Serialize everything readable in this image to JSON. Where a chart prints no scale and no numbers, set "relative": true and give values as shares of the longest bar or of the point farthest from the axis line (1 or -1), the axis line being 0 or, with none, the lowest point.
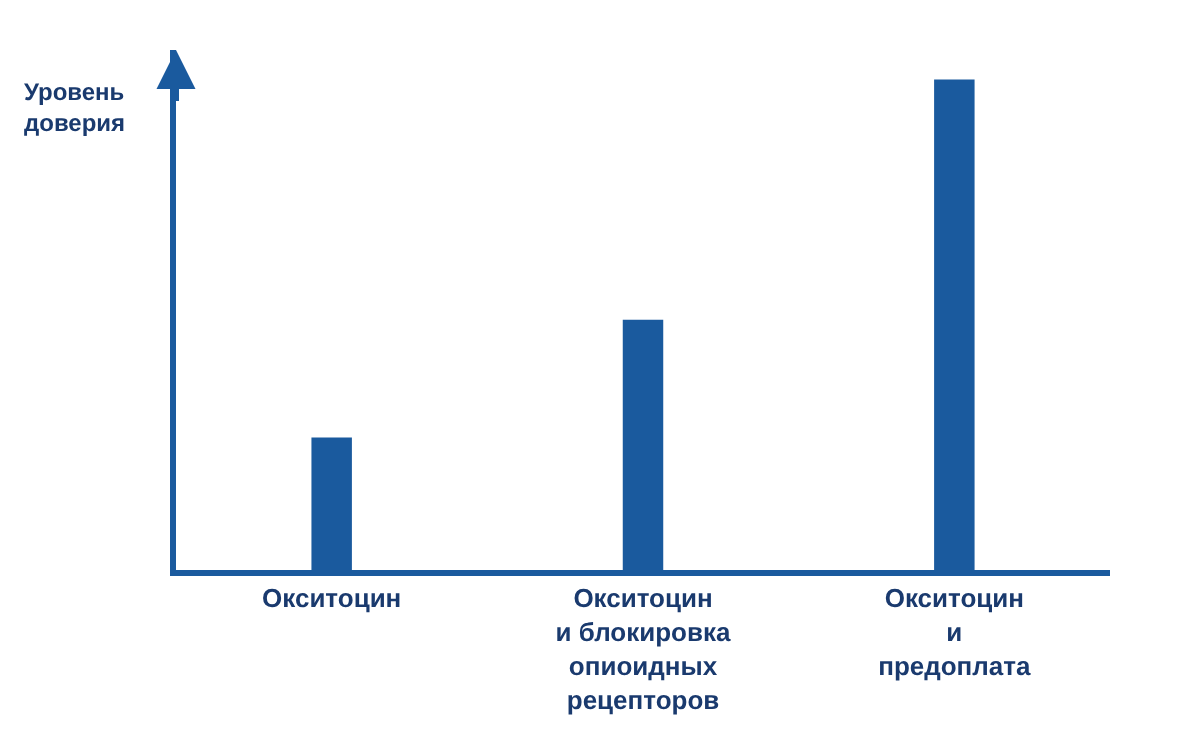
{
  "chart_data": {
    "type": "bar",
    "relative": true,
    "ylabel": "Уровень\nдоверия",
    "categories": [
      "Окситоцин",
      "Окситоцин\nи блокировка\nопиоидных\nрецепторов",
      "Окситоцин\nи\nпредоплата"
    ],
    "values": [
      0.27,
      0.51,
      1
    ],
    "color": "#1a5a9e"
  }
}
